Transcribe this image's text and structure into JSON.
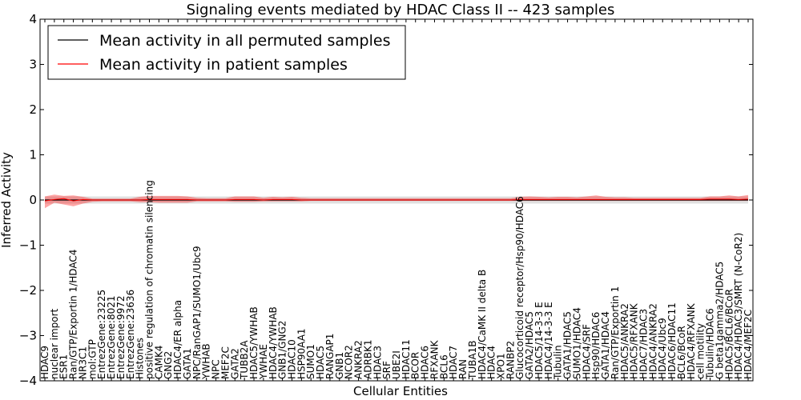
{
  "chart_data": {
    "type": "line",
    "title": "Signaling events mediated by HDAC Class II -- 423 samples",
    "xlabel": "Cellular Entities",
    "ylabel": "Inferred Activity",
    "ylim": [
      -4,
      4
    ],
    "yticks": [
      "−4",
      "−3",
      "−2",
      "−1",
      "0",
      "1",
      "2",
      "3",
      "4"
    ],
    "ytick_values": [
      -4,
      -3,
      -2,
      -1,
      0,
      1,
      2,
      3,
      4
    ],
    "legend": {
      "position": "top-left",
      "entries": [
        {
          "label": "Mean activity in all permuted samples",
          "color": "#000000"
        },
        {
          "label": "Mean activity in patient samples",
          "color": "#ff0000"
        }
      ]
    },
    "categories": [
      "HDAC9",
      "nuclear import",
      "ESR1",
      "Ran/GTP/Exportin 1/HDAC4",
      "NR3C1",
      "mol:GTP",
      "EntrezGene:23225",
      "EntrezGene:8021",
      "EntrezGene:9972",
      "EntrezGene:23636",
      "Histones",
      "positive regulation of chromatin silencing",
      "CAMK4",
      "GNG2",
      "HDAC4/ER alpha",
      "GATA1",
      "NPC/RanGAP1/SUMO1/Ubc9",
      "YWHAB",
      "NPC",
      "MEF2C",
      "GATA2",
      "TUBB2A",
      "HDAC5/YWHAB",
      "YWHAE",
      "HDAC4/YWHAB",
      "GNB1/GNG2",
      "HDAC10",
      "HSP90AA1",
      "SUMO1",
      "HDAC5",
      "RANGAP1",
      "GNB1",
      "NCOR2",
      "ANKRA2",
      "ADRBK1",
      "HDAC3",
      "SRF",
      "UBE2I",
      "HDAC11",
      "BCOR",
      "HDAC6",
      "RFXANK",
      "BCL6",
      "HDAC7",
      "RAN",
      "TUBA1B",
      "HDAC4/CaMK II delta B",
      "HDAC4",
      "XPO1",
      "RANBP2",
      "Glucocorticoid receptor/Hsp90/HDAC6",
      "GATA2/HDAC5",
      "HDAC5/14-3-3 E",
      "HDAC4/14-3-3 E",
      "Tubulin",
      "GATA1/HDAC5",
      "SUMO1/HDAC4",
      "HDAC4/SRF",
      "Hsp90/HDAC6",
      "GATA1/HDAC4",
      "Ran/GTP/Exportin 1",
      "HDAC5/ANKRA2",
      "HDAC5/RFXANK",
      "HDAC7/HDAC3",
      "HDAC4/ANKRA2",
      "HDAC4/Ubc9",
      "HDAC6/HDAC11",
      "BCL6/BCoR",
      "HDAC4/RFXANK",
      "cell motility",
      "Tubulin/HDAC6",
      "G beta1gamma2/HDAC5",
      "HDAC5/BCL6/BCoR",
      "HDAC4/HDAC3/SMRT (N-CoR2)",
      "HDAC4/MEF2C"
    ],
    "series": [
      {
        "name": "Mean activity in all permuted samples",
        "color": "#000000",
        "values": [
          0,
          0,
          0,
          0,
          0,
          0,
          0,
          0,
          0,
          0,
          0,
          0,
          0,
          0,
          0,
          0,
          0,
          0,
          0,
          0,
          0,
          0,
          0,
          0,
          0,
          0,
          0,
          0,
          0,
          0,
          0,
          0,
          0,
          0,
          0,
          0,
          0,
          0,
          0,
          0,
          0,
          0,
          0,
          0,
          0,
          0,
          0,
          0,
          0,
          0,
          0,
          0,
          0,
          0,
          0,
          0,
          0,
          0,
          0,
          0,
          0,
          0,
          0,
          0,
          0,
          0,
          0,
          0,
          0,
          0,
          0,
          0,
          0,
          0,
          0
        ],
        "band_low": [
          -0.08,
          -0.08,
          -0.08,
          -0.08,
          -0.08,
          -0.08,
          -0.08,
          -0.08,
          -0.08,
          -0.08,
          -0.08,
          -0.08,
          -0.08,
          -0.08,
          -0.08,
          -0.08,
          -0.08,
          -0.08,
          -0.08,
          -0.08,
          -0.08,
          -0.08,
          -0.08,
          -0.08,
          -0.08,
          -0.08,
          -0.08,
          -0.08,
          -0.08,
          -0.08,
          -0.08,
          -0.08,
          -0.08,
          -0.08,
          -0.08,
          -0.08,
          -0.08,
          -0.08,
          -0.08,
          -0.08,
          -0.08,
          -0.08,
          -0.08,
          -0.08,
          -0.08,
          -0.08,
          -0.08,
          -0.08,
          -0.08,
          -0.08,
          -0.08,
          -0.08,
          -0.08,
          -0.08,
          -0.08,
          -0.08,
          -0.08,
          -0.08,
          -0.08,
          -0.08,
          -0.08,
          -0.08,
          -0.08,
          -0.08,
          -0.08,
          -0.08,
          -0.08,
          -0.08,
          -0.08,
          -0.08,
          -0.08,
          -0.08,
          -0.08,
          -0.08,
          -0.08
        ],
        "band_high": [
          0.08,
          0.08,
          0.08,
          0.08,
          0.08,
          0.08,
          0.08,
          0.08,
          0.08,
          0.08,
          0.08,
          0.08,
          0.08,
          0.08,
          0.08,
          0.08,
          0.08,
          0.08,
          0.08,
          0.08,
          0.08,
          0.08,
          0.08,
          0.08,
          0.08,
          0.08,
          0.08,
          0.08,
          0.08,
          0.08,
          0.08,
          0.08,
          0.08,
          0.08,
          0.08,
          0.08,
          0.08,
          0.08,
          0.08,
          0.08,
          0.08,
          0.08,
          0.08,
          0.08,
          0.08,
          0.08,
          0.08,
          0.08,
          0.08,
          0.08,
          0.08,
          0.08,
          0.08,
          0.08,
          0.08,
          0.08,
          0.08,
          0.08,
          0.08,
          0.08,
          0.08,
          0.08,
          0.08,
          0.08,
          0.08,
          0.08,
          0.08,
          0.08,
          0.08,
          0.08,
          0.08,
          0.08,
          0.08,
          0.08,
          0.08
        ]
      },
      {
        "name": "Mean activity in patient samples",
        "color": "#ff0000",
        "values": [
          -0.02,
          0.01,
          0.03,
          -0.02,
          0.01,
          0.0,
          0.0,
          0.0,
          0.0,
          0.0,
          0.0,
          0.01,
          0.01,
          0.01,
          0.01,
          0.01,
          0.0,
          0.0,
          0.0,
          0.0,
          0.01,
          0.01,
          0.01,
          0.0,
          0.01,
          0.01,
          0.01,
          0.0,
          0.0,
          0.0,
          0.0,
          0.0,
          0.0,
          0.0,
          0.0,
          0.0,
          0.0,
          0.0,
          0.0,
          0.0,
          0.0,
          0.0,
          0.0,
          0.0,
          0.0,
          0.0,
          0.0,
          0.0,
          0.0,
          0.0,
          0.01,
          0.01,
          0.01,
          0.01,
          0.01,
          0.01,
          0.01,
          0.01,
          0.01,
          0.01,
          0.01,
          0.01,
          0.01,
          0.01,
          0.01,
          0.01,
          0.01,
          0.01,
          0.01,
          0.01,
          0.02,
          0.02,
          0.02,
          0.01,
          0.02
        ],
        "band_low": [
          -0.18,
          -0.06,
          -0.1,
          -0.14,
          -0.08,
          -0.04,
          -0.03,
          -0.03,
          -0.03,
          -0.03,
          -0.05,
          -0.05,
          -0.06,
          -0.06,
          -0.06,
          -0.06,
          -0.03,
          -0.03,
          -0.03,
          -0.03,
          -0.04,
          -0.04,
          -0.04,
          -0.03,
          -0.03,
          -0.03,
          -0.03,
          -0.03,
          -0.02,
          -0.02,
          -0.02,
          -0.02,
          -0.02,
          -0.02,
          -0.02,
          -0.02,
          -0.02,
          -0.02,
          -0.02,
          -0.02,
          -0.02,
          -0.02,
          -0.02,
          -0.02,
          -0.02,
          -0.02,
          -0.02,
          -0.02,
          -0.02,
          -0.02,
          -0.02,
          -0.02,
          -0.02,
          -0.02,
          -0.02,
          -0.02,
          -0.02,
          -0.02,
          -0.02,
          -0.02,
          -0.02,
          -0.02,
          -0.02,
          -0.02,
          -0.02,
          -0.02,
          -0.02,
          -0.02,
          -0.02,
          -0.02,
          -0.02,
          -0.02,
          -0.02,
          -0.02,
          -0.02
        ],
        "band_high": [
          0.08,
          0.12,
          0.09,
          0.1,
          0.07,
          0.03,
          0.03,
          0.03,
          0.03,
          0.03,
          0.07,
          0.09,
          0.09,
          0.09,
          0.09,
          0.08,
          0.05,
          0.04,
          0.04,
          0.04,
          0.08,
          0.08,
          0.08,
          0.05,
          0.07,
          0.06,
          0.07,
          0.05,
          0.04,
          0.04,
          0.04,
          0.04,
          0.04,
          0.04,
          0.04,
          0.04,
          0.04,
          0.04,
          0.04,
          0.04,
          0.04,
          0.04,
          0.04,
          0.04,
          0.04,
          0.04,
          0.04,
          0.04,
          0.04,
          0.04,
          0.07,
          0.08,
          0.07,
          0.06,
          0.07,
          0.07,
          0.06,
          0.08,
          0.1,
          0.07,
          0.06,
          0.06,
          0.05,
          0.05,
          0.05,
          0.05,
          0.05,
          0.05,
          0.05,
          0.05,
          0.08,
          0.08,
          0.1,
          0.08,
          0.11
        ]
      }
    ]
  }
}
